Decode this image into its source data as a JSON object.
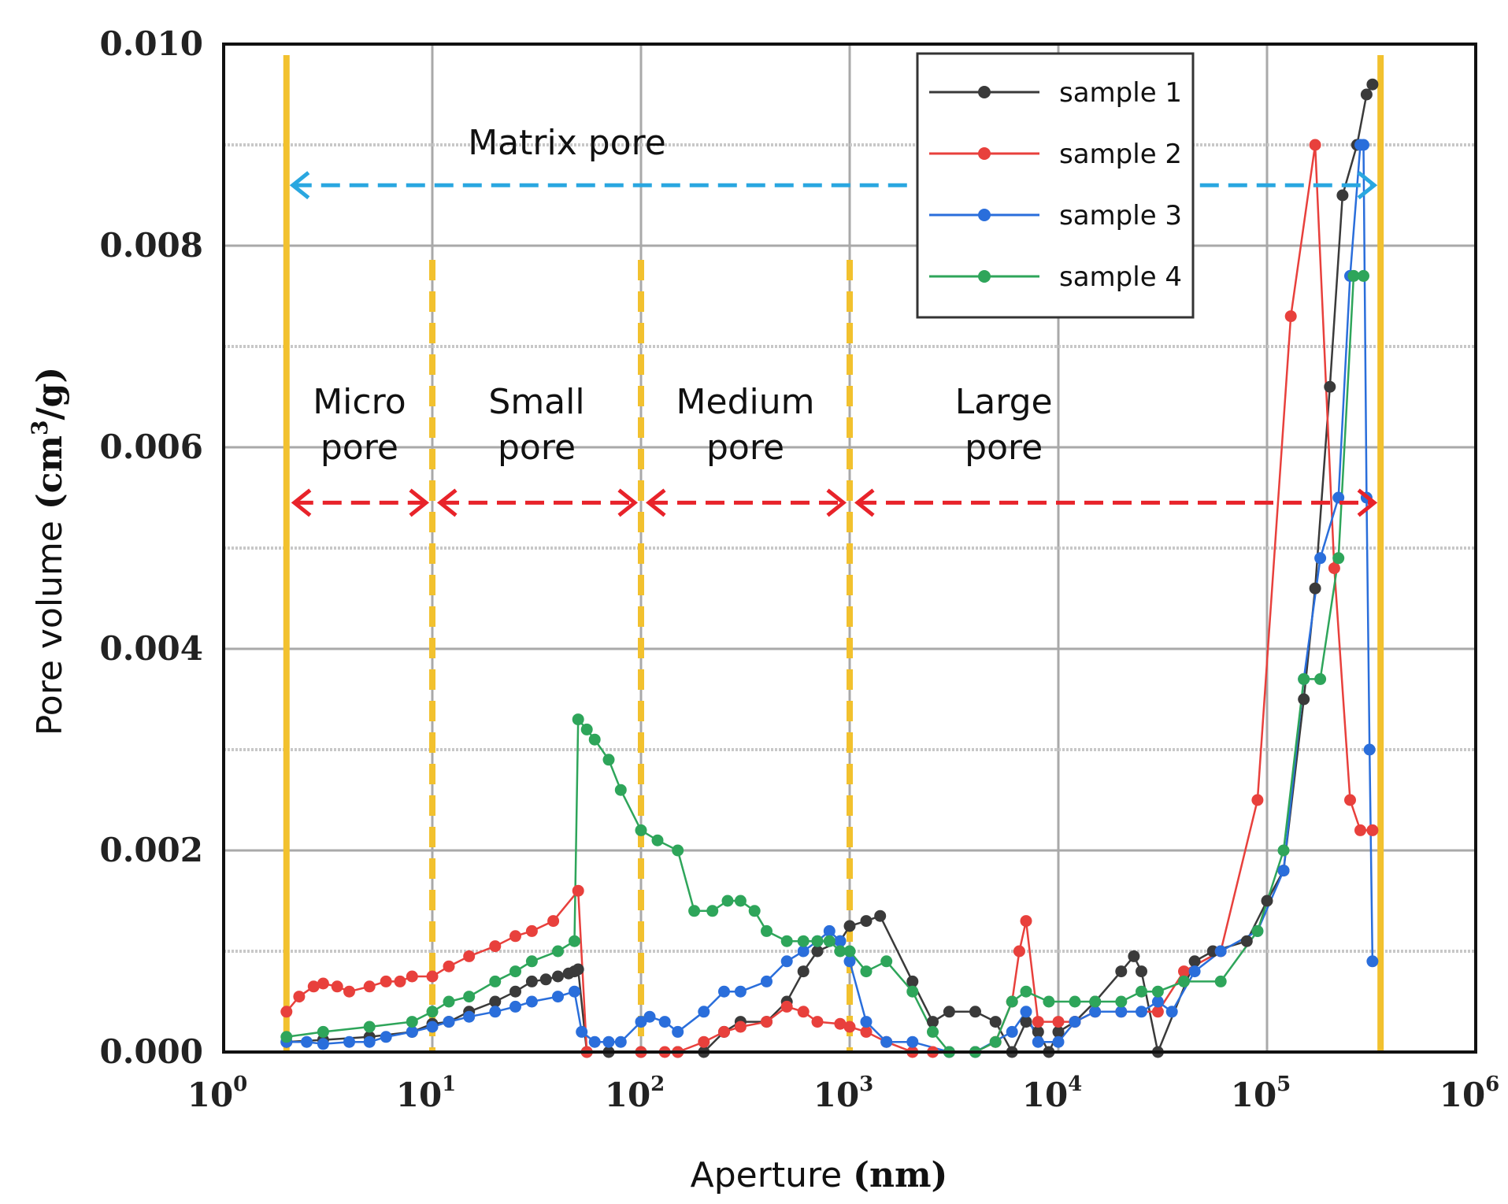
{
  "chart_data": {
    "type": "line",
    "xscale": "log",
    "xlim_exp": [
      0,
      6
    ],
    "ylim": [
      0,
      0.01
    ],
    "x_ticks": [
      {
        "base": "10",
        "exp": "0"
      },
      {
        "base": "10",
        "exp": "1"
      },
      {
        "base": "10",
        "exp": "2"
      },
      {
        "base": "10",
        "exp": "3"
      },
      {
        "base": "10",
        "exp": "4"
      },
      {
        "base": "10",
        "exp": "5"
      },
      {
        "base": "10",
        "exp": "6"
      }
    ],
    "y_ticks": [
      {
        "value": 0.0,
        "label": "0.000"
      },
      {
        "value": 0.002,
        "label": "0.002"
      },
      {
        "value": 0.004,
        "label": "0.004"
      },
      {
        "value": 0.006,
        "label": "0.006"
      },
      {
        "value": 0.008,
        "label": "0.008"
      },
      {
        "value": 0.01,
        "label": "0.010"
      }
    ],
    "xlabel": {
      "main": "Aperture ",
      "unit": "(nm)"
    },
    "ylabel": {
      "main": "Pore volume ",
      "unit_pre": "(cm",
      "unit_sup": "3",
      "unit_post": "/g)"
    },
    "legend_position": "top-right",
    "series": [
      {
        "name": "sample 1",
        "color": "#3a3a3a",
        "x": [
          2,
          3,
          5,
          8,
          10,
          12,
          15,
          20,
          25,
          30,
          35,
          40,
          45,
          48,
          50,
          55,
          70,
          100,
          150,
          200,
          250,
          300,
          400,
          500,
          600,
          700,
          900,
          1000,
          1200,
          1400,
          2000,
          2500,
          3000,
          4000,
          5000,
          6000,
          7000,
          8000,
          9000,
          10000,
          12000,
          15000,
          20000,
          23000,
          25000,
          30000,
          45000,
          55000,
          80000,
          100000,
          120000,
          150000,
          170000,
          200000,
          230000,
          270000,
          300000,
          320000
        ],
        "y": [
          0.0001,
          0.00012,
          0.00015,
          0.0002,
          0.00028,
          0.0003,
          0.0004,
          0.0005,
          0.0006,
          0.0007,
          0.00072,
          0.00075,
          0.00078,
          0.0008,
          0.00082,
          0.0,
          0.0,
          0.0,
          0.0,
          0.0,
          0.0002,
          0.0003,
          0.0003,
          0.0005,
          0.0008,
          0.001,
          0.0011,
          0.00125,
          0.0013,
          0.00135,
          0.0007,
          0.0003,
          0.0004,
          0.0004,
          0.0003,
          0.0,
          0.0003,
          0.0002,
          0.0,
          0.0002,
          0.0003,
          0.0005,
          0.0008,
          0.00095,
          0.0008,
          0.0,
          0.0009,
          0.001,
          0.0011,
          0.0015,
          0.0018,
          0.0035,
          0.0046,
          0.0066,
          0.0085,
          0.009,
          0.0095,
          0.0096
        ]
      },
      {
        "name": "sample 2",
        "color": "#e8403c",
        "x": [
          2,
          2.3,
          2.7,
          3,
          3.5,
          4,
          5,
          6,
          7,
          8,
          10,
          12,
          15,
          20,
          25,
          30,
          38,
          50,
          55,
          100,
          130,
          150,
          200,
          250,
          300,
          400,
          500,
          600,
          700,
          900,
          1000,
          1200,
          1500,
          2000,
          2500,
          3000,
          4000,
          5000,
          6000,
          6500,
          7000,
          8000,
          10000,
          12000,
          15000,
          20000,
          30000,
          40000,
          60000,
          90000,
          130000,
          170000,
          210000,
          250000,
          280000,
          320000
        ],
        "y": [
          0.0004,
          0.00055,
          0.00065,
          0.00068,
          0.00065,
          0.0006,
          0.00065,
          0.0007,
          0.0007,
          0.00075,
          0.00075,
          0.00085,
          0.00095,
          0.00105,
          0.00115,
          0.0012,
          0.0013,
          0.0016,
          0.0,
          0.0,
          0.0,
          0.0,
          0.0001,
          0.0002,
          0.00025,
          0.0003,
          0.00045,
          0.0004,
          0.0003,
          0.00028,
          0.00025,
          0.0002,
          0.0001,
          0.0,
          0.0,
          0.0,
          0.0,
          0.0001,
          0.0005,
          0.001,
          0.0013,
          0.0003,
          0.0003,
          0.0003,
          0.0004,
          0.0004,
          0.0004,
          0.0008,
          0.001,
          0.0025,
          0.0073,
          0.009,
          0.0048,
          0.0025,
          0.0022,
          0.0022
        ]
      },
      {
        "name": "sample 3",
        "color": "#2a6edb",
        "x": [
          2,
          2.5,
          3,
          4,
          5,
          6,
          8,
          10,
          12,
          15,
          20,
          25,
          30,
          40,
          48,
          52,
          60,
          70,
          80,
          100,
          110,
          130,
          150,
          200,
          250,
          300,
          400,
          500,
          600,
          700,
          800,
          900,
          1000,
          1200,
          1500,
          2000,
          3000,
          4000,
          6000,
          7000,
          8000,
          10000,
          12000,
          15000,
          20000,
          25000,
          30000,
          35000,
          45000,
          60000,
          90000,
          120000,
          150000,
          180000,
          220000,
          250000,
          280000,
          290000,
          300000,
          310000,
          320000
        ],
        "y": [
          0.0001,
          0.0001,
          8e-05,
          0.0001,
          0.0001,
          0.00015,
          0.0002,
          0.00025,
          0.0003,
          0.00035,
          0.0004,
          0.00045,
          0.0005,
          0.00055,
          0.0006,
          0.0002,
          0.0001,
          0.0001,
          0.0001,
          0.0003,
          0.00035,
          0.0003,
          0.0002,
          0.0004,
          0.0006,
          0.0006,
          0.0007,
          0.0009,
          0.001,
          0.0011,
          0.0012,
          0.0011,
          0.0009,
          0.0003,
          0.0001,
          0.0001,
          0.0,
          0.0,
          0.0002,
          0.0004,
          0.0001,
          0.0001,
          0.0003,
          0.0004,
          0.0004,
          0.0004,
          0.0005,
          0.0004,
          0.0008,
          0.001,
          0.0012,
          0.0018,
          0.0037,
          0.0049,
          0.0055,
          0.0077,
          0.009,
          0.009,
          0.0055,
          0.003,
          0.0009
        ]
      },
      {
        "name": "sample 4",
        "color": "#2ea55a",
        "x": [
          2,
          3,
          5,
          8,
          10,
          12,
          15,
          20,
          25,
          30,
          40,
          48,
          50,
          55,
          60,
          70,
          80,
          100,
          120,
          150,
          180,
          220,
          260,
          300,
          350,
          400,
          500,
          600,
          700,
          800,
          900,
          1000,
          1200,
          1500,
          2000,
          2500,
          3000,
          4000,
          5000,
          6000,
          7000,
          9000,
          12000,
          15000,
          20000,
          25000,
          30000,
          40000,
          60000,
          90000,
          120000,
          150000,
          180000,
          220000,
          260000,
          290000
        ],
        "y": [
          0.00015,
          0.0002,
          0.00025,
          0.0003,
          0.0004,
          0.0005,
          0.00055,
          0.0007,
          0.0008,
          0.0009,
          0.001,
          0.0011,
          0.0033,
          0.0032,
          0.0031,
          0.0029,
          0.0026,
          0.0022,
          0.0021,
          0.002,
          0.0014,
          0.0014,
          0.0015,
          0.0015,
          0.0014,
          0.0012,
          0.0011,
          0.0011,
          0.0011,
          0.0011,
          0.001,
          0.001,
          0.0008,
          0.0009,
          0.0006,
          0.0002,
          0.0,
          0.0,
          0.0001,
          0.0005,
          0.0006,
          0.0005,
          0.0005,
          0.0005,
          0.0005,
          0.0006,
          0.0006,
          0.0007,
          0.0007,
          0.0012,
          0.002,
          0.0037,
          0.0037,
          0.0049,
          0.0077,
          0.0077
        ]
      }
    ],
    "region_boundaries": [
      2,
      10,
      100,
      1000,
      350000
    ],
    "regions": [
      {
        "lines": [
          "Micro",
          "pore"
        ],
        "from": 2,
        "to": 10
      },
      {
        "lines": [
          "Small",
          "pore"
        ],
        "from": 10,
        "to": 100
      },
      {
        "lines": [
          "Medium",
          "pore"
        ],
        "from": 100,
        "to": 1000
      },
      {
        "lines": [
          "Large",
          "pore"
        ],
        "from": 1000,
        "to": 350000
      }
    ],
    "matrix_label": "Matrix pore",
    "colors": {
      "boundary": "#f2c12e",
      "region_arrow": "#e8232a",
      "matrix_arrow": "#2aa7e0",
      "grid_major": "#a9a9a9",
      "grid_minor": "#c8c8c8"
    }
  }
}
